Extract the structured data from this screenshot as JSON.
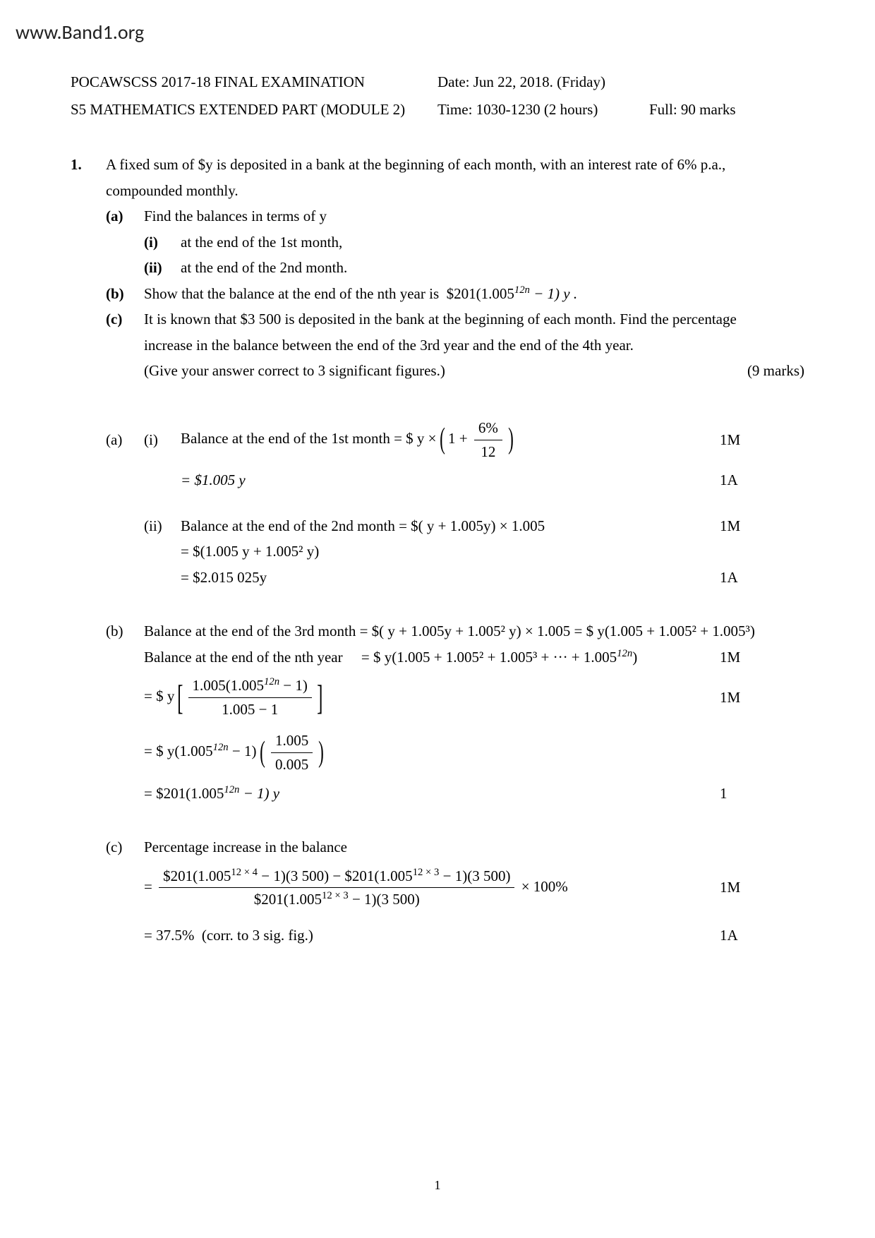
{
  "watermark": "www.Band1.org",
  "header": {
    "line1_left": "POCAWSCSS 2017-18 FINAL EXAMINATION",
    "line1_mid": "Date: Jun 22, 2018. (Friday)",
    "line2_left": "S5 MATHEMATICS EXTENDED PART (MODULE 2)",
    "line2_mid": "Time: 1030-1230 (2 hours)",
    "line2_right": "Full: 90 marks"
  },
  "question": {
    "number": "1.",
    "stem1": "A fixed sum of $y is deposited in a bank at the beginning of each month, with an interest rate of 6% p.a.,",
    "stem2": "compounded monthly.",
    "a_label": "(a)",
    "a_text": "Find the balances in terms of y",
    "a_i_label": "(i)",
    "a_i_text": "at the end of the 1st month,",
    "a_ii_label": "(ii)",
    "a_ii_text": "at the end of the 2nd month.",
    "b_label": "(b)",
    "b_text_pre": "Show that the balance at the end of the nth year is  $201(1.005",
    "b_text_sup": "12n",
    "b_text_post": " − 1) y .",
    "c_label": "(c)",
    "c_text1": "It is known that $3 500 is deposited in the bank at the beginning of each month. Find the percentage",
    "c_text2": "increase in the balance between the end of the 3rd year and the end of the 4th year.",
    "c_hint": "(Give your answer correct to 3 significant figures.)",
    "marks_total": "(9 marks)"
  },
  "solution": {
    "a_label": "(a)",
    "i_label": "(i)",
    "ii_label": "(ii)",
    "b_label": "(b)",
    "c_label": "(c)",
    "a_i_line1_pre": "Balance at the end of the 1st month  = $ y ×",
    "a_i_line1_num": "6%",
    "a_i_line1_one": "1 +",
    "a_i_line1_den": "12",
    "a_i_line1_mark": "1M",
    "a_i_line2": "= $1.005 y",
    "a_i_line2_mark": "1A",
    "a_ii_line1": "Balance at the end of the 2nd month   = $( y + 1.005y) × 1.005",
    "a_ii_line1_mark": "1M",
    "a_ii_line2": "= $(1.005 y + 1.005² y)",
    "a_ii_line3": "= $2.015 025y",
    "a_ii_line3_mark": "1A",
    "b_line1": "Balance at the end of the 3rd month   = $( y + 1.005y + 1.005² y) × 1.005 = $ y(1.005 + 1.005² + 1.005³)",
    "b_line2_pre": "Balance at the end of the nth year     = $ y(1.005 + 1.005² + 1.005³ + ··· + 1.005",
    "b_line2_sup": "12n",
    "b_line2_post": ")",
    "b_line2_mark": "1M",
    "b_line3_pre": "= $ y",
    "b_line3_num_pre": "1.005(1.005",
    "b_line3_num_sup": "12n",
    "b_line3_num_post": " − 1)",
    "b_line3_den": "1.005 − 1",
    "b_line3_mark": "1M",
    "b_line4_pre": "= $ y(1.005",
    "b_line4_sup": "12n",
    "b_line4_post": " − 1)",
    "b_line4_num": "1.005",
    "b_line4_den": "0.005",
    "b_line5_pre": "= $201(1.005",
    "b_line5_sup": "12n",
    "b_line5_post": " − 1) y",
    "b_line5_mark": "1",
    "c_line1": "Percentage increase in the balance",
    "c_line2_num_a": "$201(1.005",
    "c_line2_num_a_sup": "12 × 4",
    "c_line2_num_a_post": " − 1)(3 500) − $201(1.005",
    "c_line2_num_b_sup": "12 × 3",
    "c_line2_num_b_post": " − 1)(3 500)",
    "c_line2_den_pre": "$201(1.005",
    "c_line2_den_sup": "12 × 3",
    "c_line2_den_post": " − 1)(3 500)",
    "c_line2_tail": " × 100%",
    "c_line2_eq": "= ",
    "c_line2_mark": "1M",
    "c_line3": "= 37.5%  (corr. to 3 sig. fig.)",
    "c_line3_mark": "1A"
  },
  "pagenum": "1"
}
